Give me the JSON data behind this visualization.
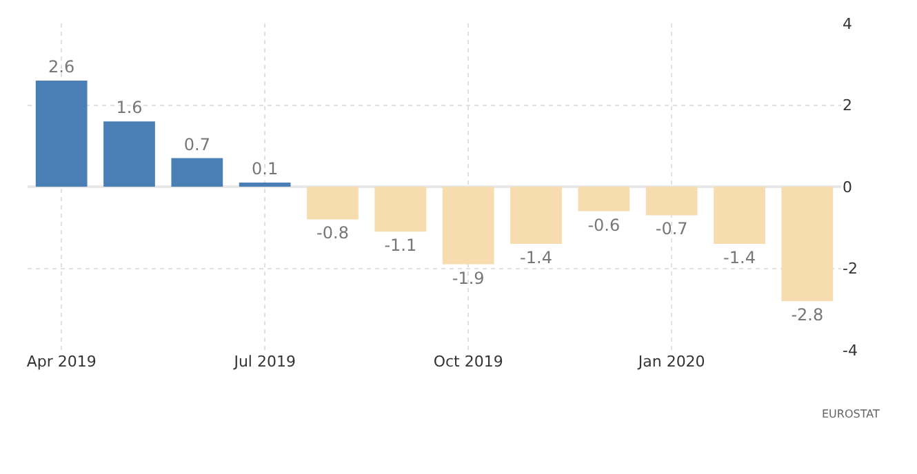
{
  "chart_data": {
    "type": "bar",
    "categories": [
      "Apr 2019",
      null,
      null,
      "Jul 2019",
      null,
      null,
      "Oct 2019",
      null,
      null,
      "Jan 2020",
      null,
      null
    ],
    "values": [
      2.6,
      1.6,
      0.7,
      0.1,
      -0.8,
      -1.1,
      -1.9,
      -1.4,
      -0.6,
      -0.7,
      -1.4,
      -2.8
    ],
    "colors": [
      "#4a7fb5",
      "#4a7fb5",
      "#4a7fb5",
      "#4a7fb5",
      "#f6dcae",
      "#f6dcae",
      "#f6dcae",
      "#f6dcae",
      "#f6dcae",
      "#f6dcae",
      "#f6dcae",
      "#f6dcae"
    ],
    "ylim": [
      -4,
      4
    ],
    "yticks": [
      -4,
      -2,
      0,
      2,
      4
    ],
    "grid": true,
    "data_labels": true,
    "annotations": [
      "EUROSTAT"
    ]
  }
}
